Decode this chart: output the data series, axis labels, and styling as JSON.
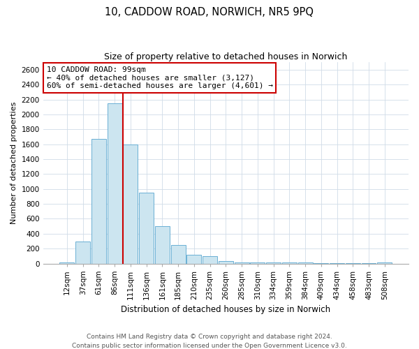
{
  "title": "10, CADDOW ROAD, NORWICH, NR5 9PQ",
  "subtitle": "Size of property relative to detached houses in Norwich",
  "xlabel": "Distribution of detached houses by size in Norwich",
  "ylabel": "Number of detached properties",
  "bar_labels": [
    "12sqm",
    "37sqm",
    "61sqm",
    "86sqm",
    "111sqm",
    "136sqm",
    "161sqm",
    "185sqm",
    "210sqm",
    "235sqm",
    "260sqm",
    "285sqm",
    "310sqm",
    "334sqm",
    "359sqm",
    "384sqm",
    "409sqm",
    "434sqm",
    "458sqm",
    "483sqm",
    "508sqm"
  ],
  "bar_values": [
    15,
    295,
    1670,
    2150,
    1600,
    950,
    505,
    250,
    120,
    95,
    35,
    10,
    10,
    10,
    10,
    10,
    5,
    5,
    5,
    5,
    15
  ],
  "bar_color": "#cce5f0",
  "bar_edge_color": "#6aafd4",
  "vline_x": 3.5,
  "vline_color": "#cc0000",
  "ylim": [
    0,
    2700
  ],
  "yticks": [
    0,
    200,
    400,
    600,
    800,
    1000,
    1200,
    1400,
    1600,
    1800,
    2000,
    2200,
    2400,
    2600
  ],
  "annotation_title": "10 CADDOW ROAD: 99sqm",
  "annotation_line1": "← 40% of detached houses are smaller (3,127)",
  "annotation_line2": "60% of semi-detached houses are larger (4,601) →",
  "footer_line1": "Contains HM Land Registry data © Crown copyright and database right 2024.",
  "footer_line2": "Contains public sector information licensed under the Open Government Licence v3.0.",
  "bg_color": "#ffffff",
  "grid_color": "#d0dce8",
  "title_fontsize": 10.5,
  "subtitle_fontsize": 9,
  "xlabel_fontsize": 8.5,
  "ylabel_fontsize": 8,
  "tick_fontsize": 7.5,
  "footer_fontsize": 6.5,
  "ann_fontsize": 8
}
